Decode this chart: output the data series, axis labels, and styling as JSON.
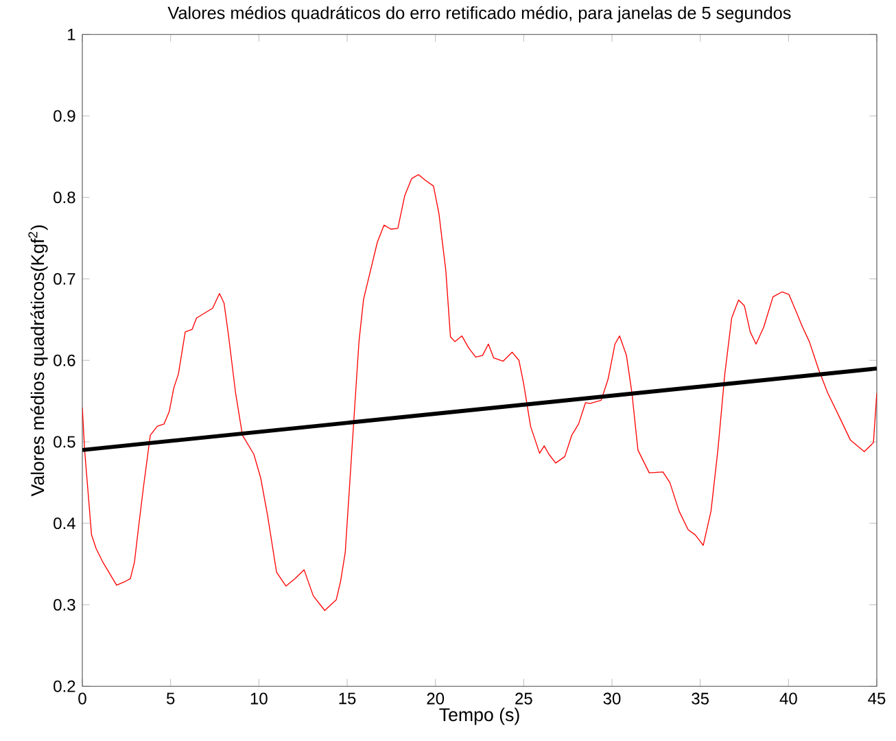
{
  "chart_data": {
    "type": "line",
    "title": "Valores médios quadráticos do erro retificado médio, para janelas de 5 segundos",
    "xlabel": "Tempo (s)",
    "ylabel": "Valores médios quadráticos(Kgf$^{2}$)",
    "xlim": [
      0,
      45
    ],
    "ylim": [
      0.2,
      1
    ],
    "xticks": [
      0,
      5,
      10,
      15,
      20,
      25,
      30,
      35,
      40,
      45
    ],
    "yticks": [
      0.2,
      0.3,
      0.4,
      0.5,
      0.6,
      0.7,
      0.8,
      0.9,
      1
    ],
    "grid": false,
    "marker": "none",
    "line_style": "solid",
    "series": [
      {
        "color": "#ff0000",
        "x": [
          0,
          0.13,
          0.52,
          0.78,
          1.17,
          1.94,
          2.46,
          2.72,
          2.95,
          3.2,
          3.46,
          3.85,
          4.24,
          4.63,
          4.92,
          5.18,
          5.44,
          5.83,
          6.22,
          6.47,
          7.38,
          7.77,
          8.03,
          8.29,
          8.68,
          9.07,
          9.71,
          10.1,
          10.49,
          11.0,
          11.53,
          12.04,
          12.56,
          13.08,
          13.73,
          14.38,
          14.63,
          14.89,
          15.15,
          15.41,
          15.67,
          15.93,
          16.32,
          16.71,
          17.09,
          17.48,
          17.87,
          18.26,
          18.65,
          19.04,
          19.43,
          19.89,
          20.2,
          20.59,
          20.85,
          21.1,
          21.5,
          21.89,
          22.28,
          22.67,
          23.0,
          23.3,
          23.83,
          24.35,
          24.73,
          25.0,
          25.39,
          25.9,
          26.16,
          26.42,
          26.81,
          27.33,
          27.72,
          28.11,
          28.5,
          28.75,
          29.39,
          29.78,
          30.17,
          30.43,
          30.82,
          31.13,
          31.47,
          32.11,
          32.89,
          33.28,
          33.8,
          34.32,
          34.71,
          35.17,
          35.61,
          36.0,
          36.39,
          36.78,
          37.17,
          37.5,
          37.83,
          38.16,
          38.6,
          39.12,
          39.63,
          40.02,
          40.41,
          40.79,
          41.18,
          41.7,
          42.22,
          42.87,
          43.51,
          44.29,
          44.81,
          45
        ],
        "values": [
          0.542,
          0.49,
          0.386,
          0.369,
          0.352,
          0.324,
          0.329,
          0.332,
          0.352,
          0.398,
          0.444,
          0.508,
          0.519,
          0.522,
          0.537,
          0.566,
          0.583,
          0.635,
          0.638,
          0.652,
          0.664,
          0.682,
          0.67,
          0.629,
          0.56,
          0.508,
          0.485,
          0.456,
          0.41,
          0.34,
          0.323,
          0.332,
          0.343,
          0.311,
          0.293,
          0.306,
          0.329,
          0.364,
          0.45,
          0.537,
          0.623,
          0.675,
          0.71,
          0.745,
          0.766,
          0.761,
          0.762,
          0.802,
          0.823,
          0.828,
          0.821,
          0.814,
          0.78,
          0.71,
          0.629,
          0.623,
          0.63,
          0.615,
          0.604,
          0.606,
          0.62,
          0.603,
          0.599,
          0.61,
          0.6,
          0.571,
          0.519,
          0.486,
          0.495,
          0.485,
          0.474,
          0.482,
          0.508,
          0.522,
          0.548,
          0.547,
          0.551,
          0.577,
          0.62,
          0.63,
          0.606,
          0.56,
          0.49,
          0.462,
          0.463,
          0.45,
          0.415,
          0.392,
          0.386,
          0.373,
          0.415,
          0.49,
          0.583,
          0.652,
          0.674,
          0.667,
          0.635,
          0.62,
          0.641,
          0.678,
          0.684,
          0.681,
          0.661,
          0.641,
          0.623,
          0.589,
          0.56,
          0.531,
          0.502,
          0.488,
          0.499,
          0.56
        ]
      },
      {
        "color": "#000000",
        "x": [
          0,
          45
        ],
        "values": [
          0.49,
          0.59
        ]
      }
    ]
  }
}
